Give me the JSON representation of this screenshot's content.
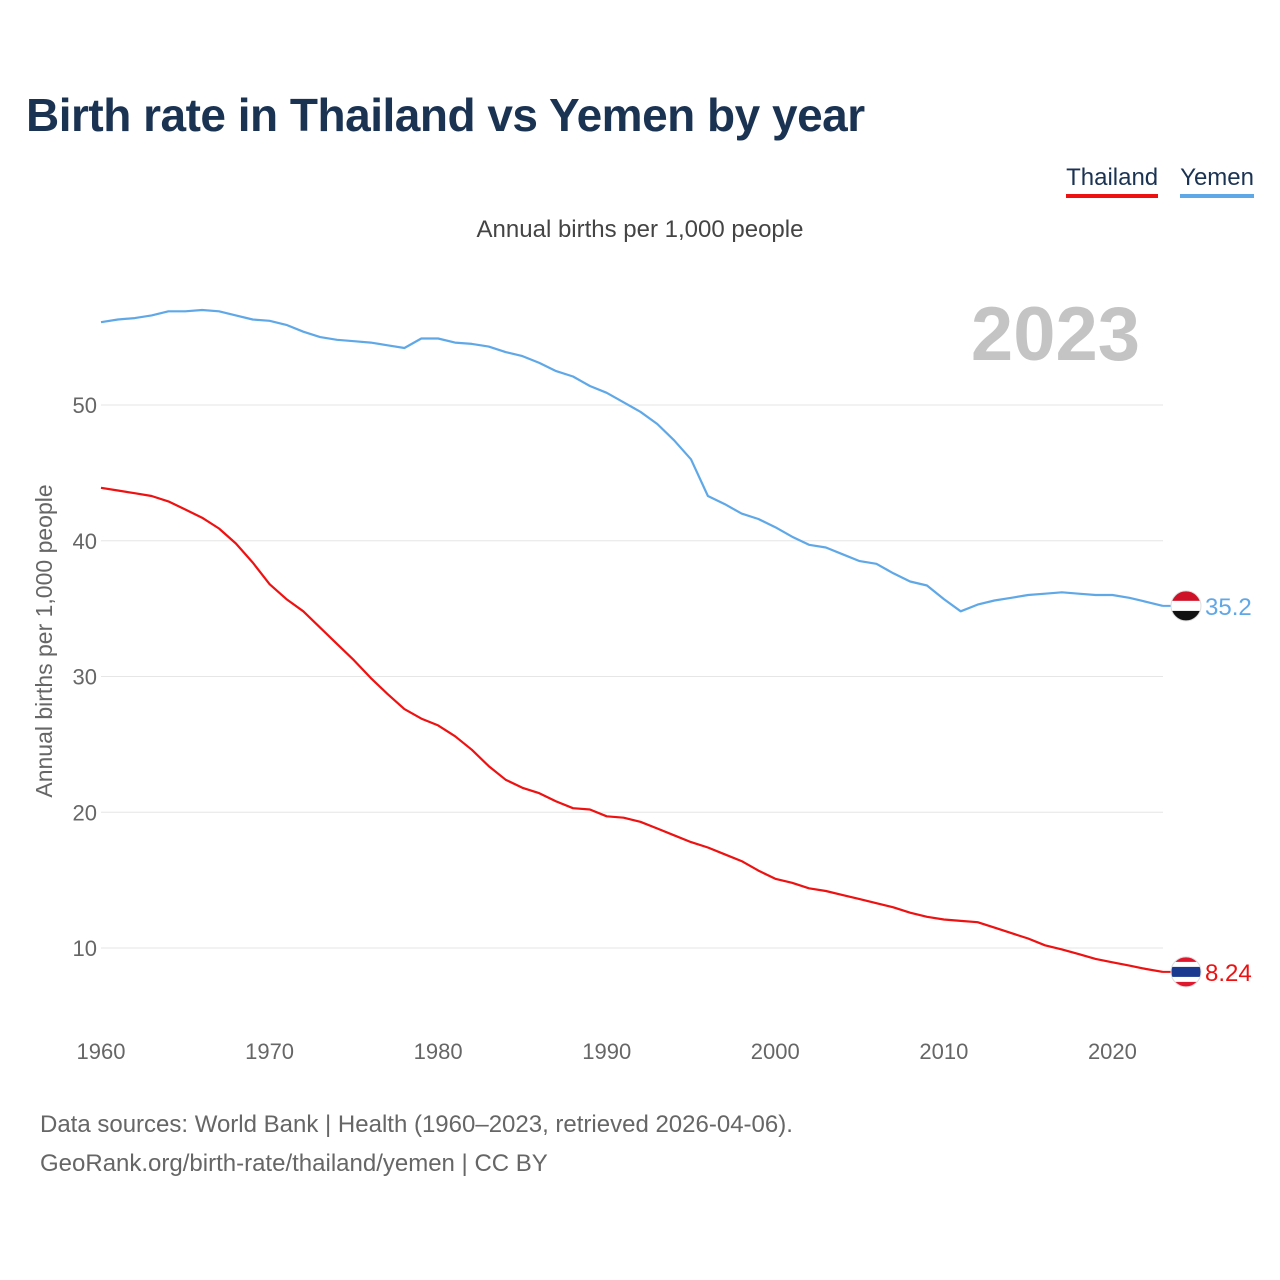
{
  "header": {
    "title": "Birth rate in Thailand vs Yemen by year",
    "subtitle": "Annual births per 1,000 people"
  },
  "legend": [
    {
      "name": "Thailand",
      "color": "#ee1111"
    },
    {
      "name": "Yemen",
      "color": "#5fa8e8"
    }
  ],
  "footer": {
    "line1": "Data sources: World Bank | Health (1960–2023, retrieved 2026-04-06).",
    "line2": "GeoRank.org/birth-rate/thailand/yemen | CC BY"
  },
  "chart_data": {
    "type": "line",
    "title": "Birth rate in Thailand vs Yemen by year",
    "ylabel": "Annual births per 1,000 people",
    "xlabel": "",
    "year_label": "2023",
    "xlim": [
      1960,
      2023
    ],
    "ylim": [
      5,
      58
    ],
    "x_ticks": [
      1960,
      1970,
      1980,
      1990,
      2000,
      2010,
      2020
    ],
    "y_ticks": [
      10,
      20,
      30,
      40,
      50
    ],
    "x": [
      1960,
      1961,
      1962,
      1963,
      1964,
      1965,
      1966,
      1967,
      1968,
      1969,
      1970,
      1971,
      1972,
      1973,
      1974,
      1975,
      1976,
      1977,
      1978,
      1979,
      1980,
      1981,
      1982,
      1983,
      1984,
      1985,
      1986,
      1987,
      1988,
      1989,
      1990,
      1991,
      1992,
      1993,
      1994,
      1995,
      1996,
      1997,
      1998,
      1999,
      2000,
      2001,
      2002,
      2003,
      2004,
      2005,
      2006,
      2007,
      2008,
      2009,
      2010,
      2011,
      2012,
      2013,
      2014,
      2015,
      2016,
      2017,
      2018,
      2019,
      2020,
      2021,
      2022,
      2023
    ],
    "series": [
      {
        "name": "Thailand",
        "color": "#ee1111",
        "end_label": "8.24",
        "values": [
          43.9,
          43.7,
          43.5,
          43.3,
          42.9,
          42.3,
          41.7,
          40.9,
          39.8,
          38.4,
          36.8,
          35.7,
          34.8,
          33.6,
          32.4,
          31.2,
          29.9,
          28.7,
          27.6,
          26.9,
          26.4,
          25.6,
          24.6,
          23.4,
          22.4,
          21.8,
          21.4,
          20.8,
          20.3,
          20.2,
          19.7,
          19.6,
          19.3,
          18.8,
          18.3,
          17.8,
          17.4,
          16.9,
          16.4,
          15.7,
          15.1,
          14.8,
          14.4,
          14.2,
          13.9,
          13.6,
          13.3,
          13.0,
          12.6,
          12.3,
          12.1,
          12.0,
          11.9,
          11.5,
          11.1,
          10.7,
          10.2,
          9.9,
          9.55,
          9.2,
          8.95,
          8.7,
          8.45,
          8.24
        ]
      },
      {
        "name": "Yemen",
        "color": "#5fa8e8",
        "end_label": "35.2",
        "values": [
          56.1,
          56.3,
          56.4,
          56.6,
          56.9,
          56.9,
          57.0,
          56.9,
          56.6,
          56.3,
          56.2,
          55.9,
          55.4,
          55.0,
          54.8,
          54.7,
          54.6,
          54.4,
          54.2,
          54.9,
          54.9,
          54.6,
          54.5,
          54.3,
          53.9,
          53.6,
          53.1,
          52.5,
          52.1,
          51.4,
          50.9,
          50.2,
          49.5,
          48.6,
          47.4,
          46.0,
          43.3,
          42.7,
          42.0,
          41.6,
          41.0,
          40.3,
          39.7,
          39.5,
          39.0,
          38.5,
          38.3,
          37.6,
          37.0,
          36.7,
          35.7,
          34.8,
          35.3,
          35.6,
          35.8,
          36.0,
          36.1,
          36.2,
          36.1,
          36.0,
          36.0,
          35.8,
          35.5,
          35.2
        ]
      }
    ]
  }
}
